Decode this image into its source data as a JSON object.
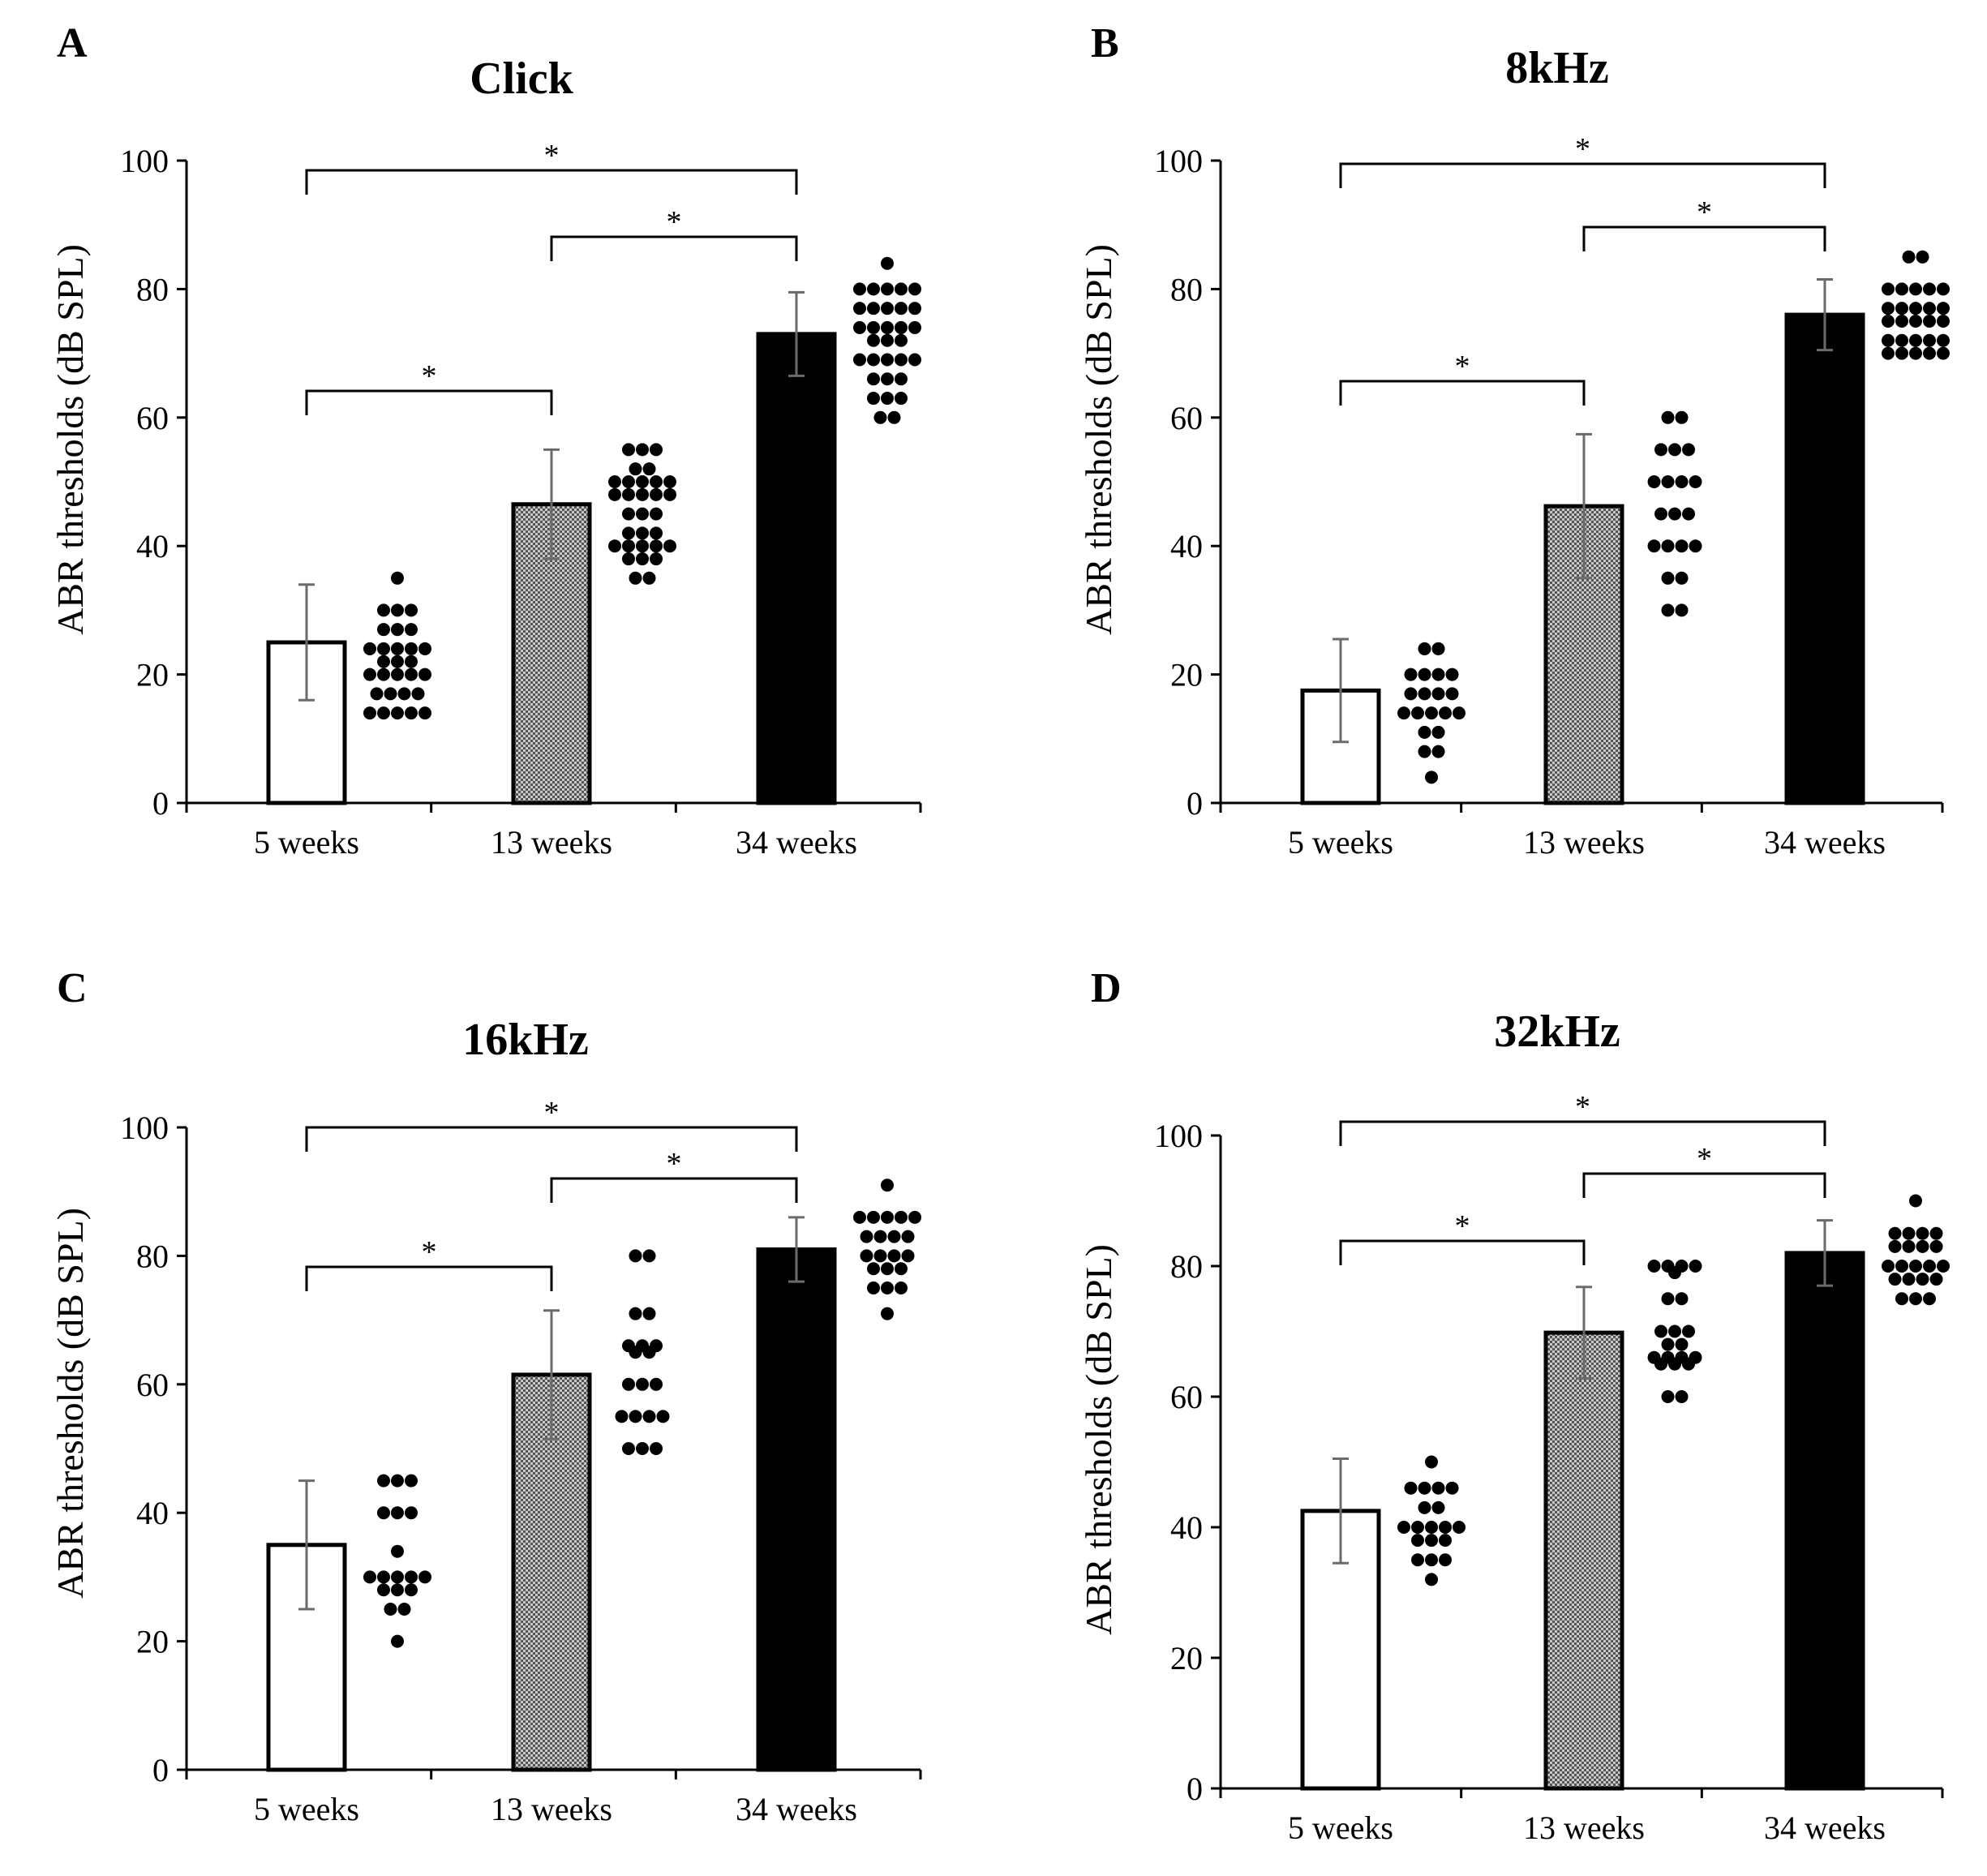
{
  "figure": {
    "panels": [
      "A",
      "B",
      "C",
      "D"
    ]
  },
  "chart_data": [
    {
      "type": "bar",
      "panel": "A",
      "title": "Click",
      "xlabel": "",
      "ylabel": "ABR thresholds (dB SPL)",
      "ylim": [
        0,
        100
      ],
      "yticks": [
        "0",
        "20",
        "40",
        "60",
        "80",
        "100"
      ],
      "categories": [
        "5 weeks",
        "13 weeks",
        "34 weeks"
      ],
      "bar_fills": [
        "white",
        "gray",
        "black"
      ],
      "values": [
        25,
        46.5,
        73
      ],
      "errors": [
        9,
        8.5,
        6.5
      ],
      "points": [
        [
          35,
          30,
          30,
          30,
          27,
          27,
          27,
          24,
          24,
          24,
          24,
          24,
          22,
          22,
          22,
          20,
          20,
          20,
          20,
          20,
          17,
          17,
          17,
          17,
          14,
          14,
          14,
          14,
          14
        ],
        [
          55,
          55,
          55,
          52,
          52,
          50,
          50,
          50,
          50,
          50,
          48,
          48,
          48,
          48,
          48,
          45,
          45,
          45,
          42,
          42,
          42,
          40,
          40,
          40,
          40,
          40,
          38,
          38,
          38,
          35,
          35
        ],
        [
          84,
          80,
          80,
          80,
          80,
          80,
          77,
          77,
          77,
          77,
          77,
          74,
          74,
          74,
          74,
          74,
          72,
          72,
          72,
          69,
          69,
          69,
          69,
          69,
          66,
          66,
          66,
          63,
          63,
          63,
          60,
          60
        ]
      ],
      "significance": [
        {
          "from": 0,
          "to": 2,
          "label": "*"
        },
        {
          "from": 1,
          "to": 2,
          "label": "*"
        },
        {
          "from": 0,
          "to": 1,
          "label": "*"
        }
      ]
    },
    {
      "type": "bar",
      "panel": "B",
      "title": "8kHz",
      "xlabel": "",
      "ylabel": "ABR thresholds (dB SPL)",
      "ylim": [
        0,
        100
      ],
      "yticks": [
        "0",
        "20",
        "40",
        "60",
        "80",
        "100"
      ],
      "categories": [
        "5 weeks",
        "13 weeks",
        "34 weeks"
      ],
      "bar_fills": [
        "white",
        "gray",
        "black"
      ],
      "values": [
        17.5,
        46.2,
        76
      ],
      "errors": [
        8,
        11.2,
        5.5
      ],
      "points": [
        [
          24,
          24,
          20,
          20,
          20,
          20,
          17,
          17,
          17,
          17,
          14,
          14,
          14,
          14,
          14,
          11,
          11,
          8,
          8,
          4
        ],
        [
          60,
          60,
          55,
          55,
          55,
          50,
          50,
          50,
          50,
          45,
          45,
          45,
          40,
          40,
          40,
          40,
          35,
          35,
          30,
          30
        ],
        [
          85,
          85,
          80,
          80,
          80,
          80,
          80,
          77,
          77,
          77,
          77,
          77,
          75,
          75,
          75,
          75,
          75,
          72,
          72,
          72,
          72,
          72,
          70,
          70,
          70,
          70,
          70
        ]
      ],
      "significance": [
        {
          "from": 0,
          "to": 2,
          "label": "*"
        },
        {
          "from": 1,
          "to": 2,
          "label": "*"
        },
        {
          "from": 0,
          "to": 1,
          "label": "*"
        }
      ]
    },
    {
      "type": "bar",
      "panel": "C",
      "title": "16kHz",
      "xlabel": "",
      "ylabel": "ABR thresholds (dB SPL)",
      "ylim": [
        0,
        100
      ],
      "yticks": [
        "0",
        "20",
        "40",
        "60",
        "80",
        "100"
      ],
      "categories": [
        "5 weeks",
        "13 weeks",
        "34 weeks"
      ],
      "bar_fills": [
        "white",
        "gray",
        "black"
      ],
      "values": [
        35,
        61.5,
        81
      ],
      "errors": [
        10,
        10,
        5
      ],
      "points": [
        [
          45,
          45,
          45,
          40,
          40,
          40,
          34,
          30,
          30,
          30,
          30,
          30,
          28,
          28,
          28,
          25,
          25,
          20
        ],
        [
          80,
          80,
          71,
          71,
          66,
          66,
          66,
          65,
          65,
          60,
          60,
          60,
          55,
          55,
          55,
          55,
          50,
          50,
          50
        ],
        [
          91,
          86,
          86,
          86,
          86,
          86,
          83,
          83,
          83,
          83,
          80,
          80,
          80,
          80,
          78,
          78,
          78,
          75,
          75,
          75,
          71
        ]
      ],
      "significance": [
        {
          "from": 0,
          "to": 2,
          "label": "*"
        },
        {
          "from": 1,
          "to": 2,
          "label": "*"
        },
        {
          "from": 0,
          "to": 1,
          "label": "*"
        }
      ]
    },
    {
      "type": "bar",
      "panel": "D",
      "title": "32kHz",
      "xlabel": "",
      "ylabel": "ABR thresholds (dB SPL)",
      "ylim": [
        0,
        100
      ],
      "yticks": [
        "0",
        "20",
        "40",
        "60",
        "80",
        "100"
      ],
      "categories": [
        "5 weeks",
        "13 weeks",
        "34 weeks"
      ],
      "bar_fills": [
        "white",
        "gray",
        "black"
      ],
      "values": [
        42.5,
        69.8,
        82
      ],
      "errors": [
        8,
        7,
        5
      ],
      "points": [
        [
          50,
          46,
          46,
          46,
          46,
          43,
          43,
          40,
          40,
          40,
          40,
          40,
          38,
          38,
          38,
          35,
          35,
          35,
          32
        ],
        [
          80,
          80,
          80,
          80,
          79,
          75,
          75,
          70,
          70,
          70,
          68,
          68,
          66,
          66,
          66,
          66,
          65,
          65,
          65,
          60,
          60
        ],
        [
          90,
          85,
          85,
          85,
          85,
          83,
          83,
          83,
          83,
          80,
          80,
          80,
          80,
          80,
          78,
          78,
          78,
          78,
          75,
          75,
          75
        ]
      ],
      "significance": [
        {
          "from": 0,
          "to": 2,
          "label": "*"
        },
        {
          "from": 1,
          "to": 2,
          "label": "*"
        },
        {
          "from": 0,
          "to": 1,
          "label": "*"
        }
      ]
    }
  ]
}
